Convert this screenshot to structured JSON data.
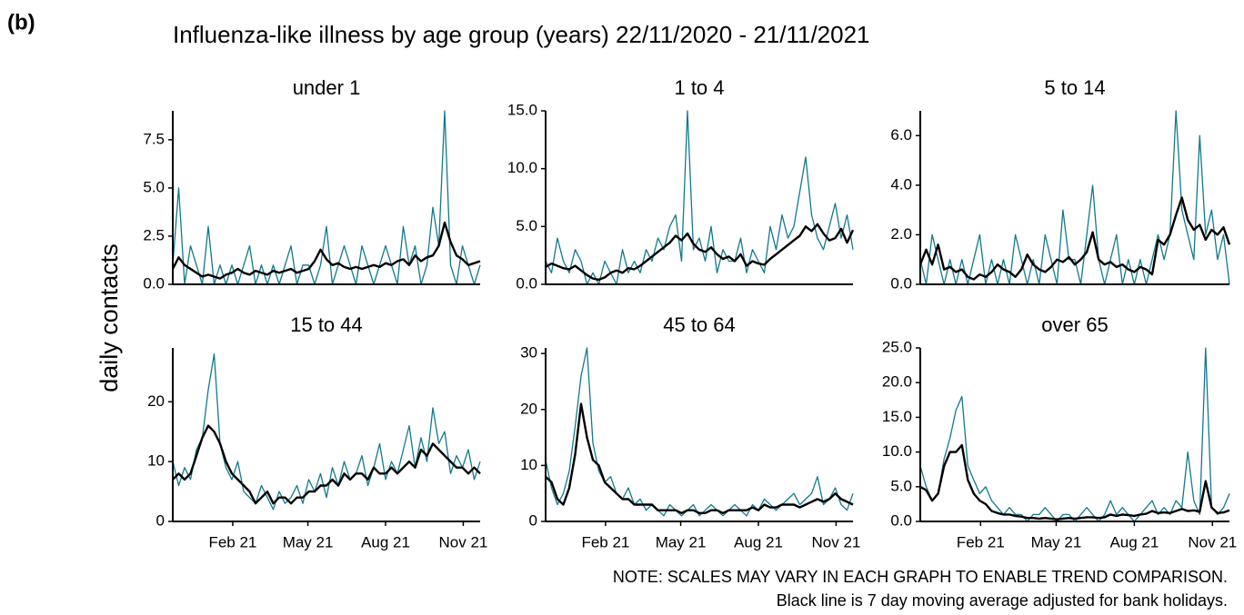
{
  "panel_label": "(b)",
  "title": "Influenza-like illness by age group (years) 22/11/2020 - 21/11/2021",
  "y_label": "daily contacts",
  "notes": [
    "NOTE: SCALES MAY VARY IN EACH GRAPH TO ENABLE TREND COMPARISON.",
    "Black line is 7 day moving average adjusted for bank holidays."
  ],
  "chart_data": [
    {
      "type": "line",
      "title": "under 1",
      "x": [
        0,
        7,
        14,
        21,
        28,
        35,
        42,
        49,
        56,
        63,
        70,
        77,
        84,
        91,
        98,
        105,
        112,
        119,
        126,
        133,
        140,
        147,
        154,
        161,
        168,
        175,
        182,
        189,
        196,
        203,
        210,
        217,
        224,
        231,
        238,
        245,
        252,
        259,
        266,
        273,
        280,
        287,
        294,
        301,
        308,
        315,
        322,
        329,
        336,
        343,
        350,
        357,
        364
      ],
      "xlim": [
        0,
        364
      ],
      "ylim": [
        0,
        9
      ],
      "yticks": [
        {
          "value": 0,
          "label": "0.0"
        },
        {
          "value": 2.5,
          "label": "2.5"
        },
        {
          "value": 5,
          "label": "5.0"
        },
        {
          "value": 7.5,
          "label": "7.5"
        }
      ],
      "series": [
        {
          "color": "#12798c",
          "values": [
            1,
            5,
            0,
            2,
            1,
            0,
            3,
            0,
            1,
            0,
            1,
            0,
            1,
            2,
            0,
            1,
            0,
            1,
            0,
            1,
            2,
            0,
            1,
            1,
            0,
            1,
            3,
            0,
            1,
            2,
            1,
            0,
            2,
            1,
            0,
            1,
            2,
            1,
            0,
            3,
            1,
            2,
            0,
            1,
            4,
            2,
            9,
            1,
            0,
            2,
            1,
            0,
            1
          ]
        },
        {
          "color": "#000000",
          "values": [
            0.8,
            1.4,
            1.0,
            0.8,
            0.6,
            0.4,
            0.5,
            0.4,
            0.3,
            0.5,
            0.6,
            0.8,
            0.6,
            0.5,
            0.7,
            0.6,
            0.5,
            0.7,
            0.6,
            0.7,
            0.8,
            0.6,
            0.7,
            0.8,
            1.2,
            1.8,
            1.3,
            1.0,
            1.1,
            0.9,
            0.8,
            0.9,
            0.8,
            0.9,
            1.0,
            0.9,
            1.1,
            1.0,
            1.2,
            1.3,
            1.0,
            1.5,
            1.2,
            1.4,
            1.5,
            2.0,
            3.2,
            2.2,
            1.5,
            1.3,
            1.0,
            1.1,
            1.2
          ]
        }
      ]
    },
    {
      "type": "line",
      "title": "1 to 4",
      "x": [
        0,
        7,
        14,
        21,
        28,
        35,
        42,
        49,
        56,
        63,
        70,
        77,
        84,
        91,
        98,
        105,
        112,
        119,
        126,
        133,
        140,
        147,
        154,
        161,
        168,
        175,
        182,
        189,
        196,
        203,
        210,
        217,
        224,
        231,
        238,
        245,
        252,
        259,
        266,
        273,
        280,
        287,
        294,
        301,
        308,
        315,
        322,
        329,
        336,
        343,
        350,
        357,
        364
      ],
      "xlim": [
        0,
        364
      ],
      "ylim": [
        0,
        15
      ],
      "yticks": [
        {
          "value": 0,
          "label": "0.0"
        },
        {
          "value": 5,
          "label": "5.0"
        },
        {
          "value": 10,
          "label": "10.0"
        },
        {
          "value": 15,
          "label": "15.0"
        }
      ],
      "series": [
        {
          "color": "#12798c",
          "values": [
            2,
            1,
            4,
            2,
            1,
            3,
            2,
            0,
            1,
            0,
            2,
            1,
            0,
            3,
            1,
            2,
            1,
            3,
            2,
            4,
            3,
            5,
            6,
            2,
            15,
            3,
            4,
            2,
            5,
            1,
            3,
            2,
            2,
            4,
            1,
            3,
            2,
            1,
            5,
            3,
            6,
            4,
            5,
            8,
            11,
            6,
            4,
            3,
            5,
            7,
            4,
            6,
            3
          ]
        },
        {
          "color": "#000000",
          "values": [
            1.5,
            1.8,
            1.6,
            1.4,
            1.3,
            1.6,
            1.2,
            0.8,
            0.5,
            0.4,
            0.6,
            1.0,
            1.2,
            1.0,
            1.4,
            1.3,
            1.6,
            2.0,
            2.4,
            2.8,
            3.2,
            3.6,
            4.2,
            3.8,
            4.4,
            3.5,
            3.0,
            2.8,
            3.2,
            2.6,
            2.2,
            2.4,
            2.0,
            2.6,
            1.6,
            2.0,
            1.8,
            1.7,
            2.2,
            2.6,
            3.0,
            3.4,
            3.8,
            4.2,
            5.0,
            4.6,
            5.2,
            4.4,
            3.8,
            4.0,
            4.8,
            3.6,
            4.7
          ]
        }
      ]
    },
    {
      "type": "line",
      "title": "5 to 14",
      "x": [
        0,
        7,
        14,
        21,
        28,
        35,
        42,
        49,
        56,
        63,
        70,
        77,
        84,
        91,
        98,
        105,
        112,
        119,
        126,
        133,
        140,
        147,
        154,
        161,
        168,
        175,
        182,
        189,
        196,
        203,
        210,
        217,
        224,
        231,
        238,
        245,
        252,
        259,
        266,
        273,
        280,
        287,
        294,
        301,
        308,
        315,
        322,
        329,
        336,
        343,
        350,
        357,
        364
      ],
      "xlim": [
        0,
        364
      ],
      "ylim": [
        0,
        7
      ],
      "yticks": [
        {
          "value": 0,
          "label": "0.0"
        },
        {
          "value": 2,
          "label": "2.0"
        },
        {
          "value": 4,
          "label": "4.0"
        },
        {
          "value": 6,
          "label": "6.0"
        }
      ],
      "series": [
        {
          "color": "#12798c",
          "values": [
            1,
            0,
            2,
            1,
            0,
            1,
            0,
            1,
            0,
            1,
            2,
            0,
            1,
            0,
            1,
            0,
            2,
            1,
            0,
            1,
            0,
            2,
            1,
            0,
            3,
            1,
            1,
            0,
            2,
            4,
            1,
            0,
            1,
            2,
            0,
            1,
            0,
            1,
            0,
            1,
            2,
            1,
            2,
            7,
            3,
            2,
            1,
            6,
            2,
            3,
            1,
            2,
            0
          ]
        },
        {
          "color": "#000000",
          "values": [
            0.8,
            1.4,
            0.8,
            1.6,
            0.6,
            0.7,
            0.5,
            0.6,
            0.3,
            0.2,
            0.4,
            0.3,
            0.5,
            0.8,
            0.6,
            0.5,
            0.3,
            0.6,
            1.2,
            0.8,
            0.6,
            0.5,
            0.7,
            1.0,
            0.9,
            1.1,
            0.8,
            1.0,
            1.3,
            2.1,
            1.0,
            0.8,
            0.9,
            0.7,
            0.8,
            0.6,
            0.5,
            0.7,
            0.6,
            0.4,
            1.8,
            1.6,
            2.0,
            2.8,
            3.5,
            2.6,
            2.2,
            2.4,
            1.8,
            2.2,
            2.0,
            2.3,
            1.6
          ]
        }
      ]
    },
    {
      "type": "line",
      "title": "15 to 44",
      "x": [
        0,
        7,
        14,
        21,
        28,
        35,
        42,
        49,
        56,
        63,
        70,
        77,
        84,
        91,
        98,
        105,
        112,
        119,
        126,
        133,
        140,
        147,
        154,
        161,
        168,
        175,
        182,
        189,
        196,
        203,
        210,
        217,
        224,
        231,
        238,
        245,
        252,
        259,
        266,
        273,
        280,
        287,
        294,
        301,
        308,
        315,
        322,
        329,
        336,
        343,
        350,
        357,
        364
      ],
      "xlim": [
        0,
        364
      ],
      "xticks": [
        {
          "value": 71,
          "label": "Feb 21"
        },
        {
          "value": 160,
          "label": "May 21"
        },
        {
          "value": 252,
          "label": "Aug 21"
        },
        {
          "value": 344,
          "label": "Nov 21"
        }
      ],
      "ylim": [
        0,
        29
      ],
      "yticks": [
        0,
        10,
        20
      ],
      "series": [
        {
          "color": "#12798c",
          "values": [
            10,
            6,
            9,
            7,
            12,
            14,
            22,
            28,
            13,
            9,
            7,
            10,
            5,
            4,
            3,
            6,
            4,
            2,
            5,
            3,
            4,
            6,
            3,
            7,
            5,
            8,
            4,
            9,
            6,
            10,
            7,
            8,
            11,
            6,
            9,
            13,
            7,
            10,
            8,
            12,
            16,
            9,
            14,
            10,
            19,
            13,
            15,
            8,
            11,
            9,
            12,
            7,
            10
          ]
        },
        {
          "color": "#000000",
          "values": [
            7,
            8,
            7,
            8,
            11,
            14,
            16,
            15,
            13,
            10,
            8,
            7,
            6,
            5,
            3,
            4,
            5,
            3,
            4,
            4,
            3,
            4,
            4,
            5,
            5,
            6,
            6,
            7,
            6,
            8,
            7,
            8,
            8,
            7,
            9,
            8,
            8,
            9,
            8,
            9,
            10,
            9,
            12,
            11,
            13,
            12,
            11,
            10,
            9,
            9,
            8,
            9,
            8
          ]
        }
      ]
    },
    {
      "type": "line",
      "title": "45 to 64",
      "x": [
        0,
        7,
        14,
        21,
        28,
        35,
        42,
        49,
        56,
        63,
        70,
        77,
        84,
        91,
        98,
        105,
        112,
        119,
        126,
        133,
        140,
        147,
        154,
        161,
        168,
        175,
        182,
        189,
        196,
        203,
        210,
        217,
        224,
        231,
        238,
        245,
        252,
        259,
        266,
        273,
        280,
        287,
        294,
        301,
        308,
        315,
        322,
        329,
        336,
        343,
        350,
        357,
        364
      ],
      "xlim": [
        0,
        364
      ],
      "xticks": [
        {
          "value": 71,
          "label": "Feb 21"
        },
        {
          "value": 160,
          "label": "May 21"
        },
        {
          "value": 252,
          "label": "Aug 21"
        },
        {
          "value": 344,
          "label": "Nov 21"
        }
      ],
      "ylim": [
        0,
        31
      ],
      "yticks": [
        0,
        10,
        20,
        30
      ],
      "series": [
        {
          "color": "#12798c",
          "values": [
            11,
            6,
            3,
            5,
            9,
            17,
            26,
            31,
            14,
            9,
            7,
            8,
            5,
            4,
            6,
            3,
            4,
            2,
            3,
            2,
            1,
            3,
            2,
            1,
            2,
            3,
            1,
            2,
            3,
            2,
            1,
            2,
            3,
            2,
            1,
            3,
            2,
            4,
            3,
            2,
            3,
            4,
            5,
            3,
            4,
            5,
            8,
            3,
            4,
            6,
            3,
            2,
            5
          ]
        },
        {
          "color": "#000000",
          "values": [
            8,
            7,
            4,
            3,
            6,
            12,
            21,
            15,
            11,
            10,
            7,
            6,
            5,
            4,
            4,
            3,
            3,
            3,
            3,
            2,
            2,
            2,
            2,
            1.5,
            2,
            2,
            1.5,
            1.5,
            2,
            2,
            1.5,
            2,
            2,
            2,
            2,
            2.5,
            2,
            3,
            2.5,
            2.5,
            3,
            3,
            3,
            2.5,
            3,
            3.5,
            4,
            3.5,
            4,
            5,
            4,
            3.5,
            3
          ]
        }
      ]
    },
    {
      "type": "line",
      "title": "over 65",
      "x": [
        0,
        7,
        14,
        21,
        28,
        35,
        42,
        49,
        56,
        63,
        70,
        77,
        84,
        91,
        98,
        105,
        112,
        119,
        126,
        133,
        140,
        147,
        154,
        161,
        168,
        175,
        182,
        189,
        196,
        203,
        210,
        217,
        224,
        231,
        238,
        245,
        252,
        259,
        266,
        273,
        280,
        287,
        294,
        301,
        308,
        315,
        322,
        329,
        336,
        343,
        350,
        357,
        364
      ],
      "xlim": [
        0,
        364
      ],
      "xticks": [
        {
          "value": 71,
          "label": "Feb 21"
        },
        {
          "value": 160,
          "label": "May 21"
        },
        {
          "value": 252,
          "label": "Aug 21"
        },
        {
          "value": 344,
          "label": "Nov 21"
        }
      ],
      "ylim": [
        0,
        25
      ],
      "yticks": [
        {
          "value": 0,
          "label": "0.0"
        },
        {
          "value": 5,
          "label": "5.0"
        },
        {
          "value": 10,
          "label": "10.0"
        },
        {
          "value": 15,
          "label": "15.0"
        },
        {
          "value": 20,
          "label": "20.0"
        },
        {
          "value": 25,
          "label": "25.0"
        }
      ],
      "series": [
        {
          "color": "#12798c",
          "values": [
            8,
            5,
            3,
            4,
            9,
            12,
            16,
            18,
            8,
            6,
            4,
            5,
            3,
            2,
            1,
            2,
            1,
            1,
            0,
            1,
            1,
            2,
            1,
            0,
            1,
            1,
            0,
            1,
            2,
            1,
            0,
            1,
            3,
            1,
            2,
            1,
            0,
            1,
            2,
            3,
            1,
            2,
            1,
            3,
            2,
            10,
            3,
            1,
            25,
            2,
            1,
            2,
            4
          ]
        },
        {
          "color": "#000000",
          "values": [
            5,
            4.5,
            3,
            4,
            8,
            10,
            10,
            11,
            6,
            4,
            3,
            2.5,
            1.5,
            1.2,
            1,
            1,
            0.8,
            0.7,
            0.5,
            0.5,
            0.4,
            0.5,
            0.4,
            0.3,
            0.4,
            0.5,
            0.4,
            0.5,
            0.6,
            0.6,
            0.5,
            0.6,
            1,
            0.8,
            1,
            0.9,
            0.8,
            1,
            1.1,
            1.5,
            1.2,
            1.3,
            1.2,
            1.5,
            1.8,
            1.5,
            1.6,
            1.4,
            5.8,
            2,
            1.2,
            1.3,
            1.6
          ]
        }
      ]
    }
  ]
}
